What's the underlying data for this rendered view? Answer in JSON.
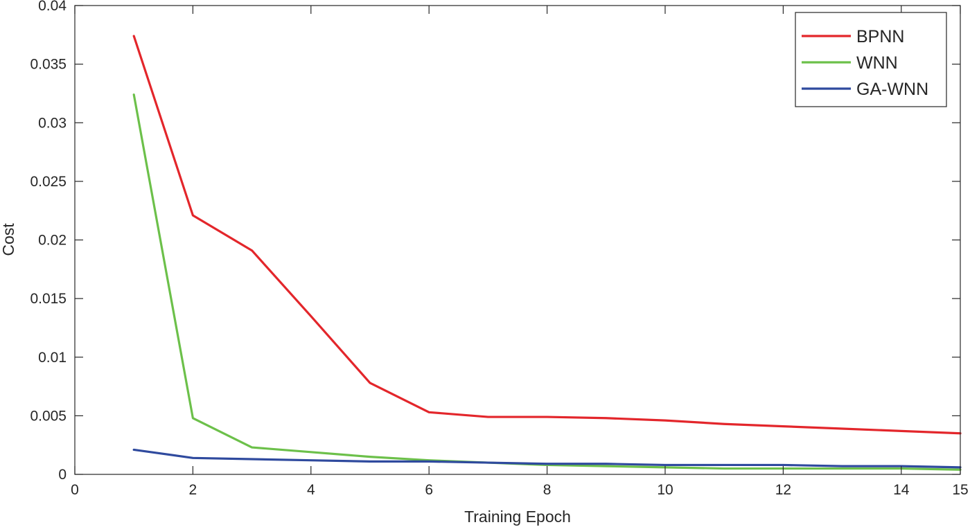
{
  "chart_data": {
    "type": "line",
    "xlabel": "Training Epoch",
    "ylabel": "Cost",
    "xlim": [
      0,
      15
    ],
    "ylim": [
      0,
      0.04
    ],
    "xticks": [
      0,
      2,
      4,
      6,
      8,
      10,
      12,
      14,
      15
    ],
    "xtick_labels": [
      "0",
      "2",
      "4",
      "6",
      "8",
      "10",
      "12",
      "14",
      "15"
    ],
    "yticks": [
      0,
      0.005,
      0.01,
      0.015,
      0.02,
      0.025,
      0.03,
      0.035,
      0.04
    ],
    "ytick_labels": [
      "0",
      "0.005",
      "0.01",
      "0.015",
      "0.02",
      "0.025",
      "0.03",
      "0.035",
      "0.04"
    ],
    "grid": false,
    "legend_position": "top-right",
    "x": [
      1,
      2,
      3,
      4,
      5,
      6,
      7,
      8,
      9,
      10,
      11,
      12,
      13,
      14,
      15
    ],
    "series": [
      {
        "name": "BPNN",
        "color": "#e3262b",
        "values": [
          0.0374,
          0.0221,
          0.0191,
          0.0135,
          0.0078,
          0.0053,
          0.0049,
          0.0049,
          0.0048,
          0.0046,
          0.0043,
          0.0041,
          0.0039,
          0.0037,
          0.0035
        ]
      },
      {
        "name": "WNN",
        "color": "#6cc04a",
        "values": [
          0.0324,
          0.0048,
          0.0023,
          0.0019,
          0.0015,
          0.0012,
          0.001,
          0.0008,
          0.0007,
          0.0006,
          0.0005,
          0.0005,
          0.0005,
          0.0005,
          0.0004
        ]
      },
      {
        "name": "GA-WNN",
        "color": "#2f4a9e",
        "values": [
          0.0021,
          0.0014,
          0.0013,
          0.0012,
          0.0011,
          0.0011,
          0.001,
          0.0009,
          0.0009,
          0.0008,
          0.0008,
          0.0008,
          0.0007,
          0.0007,
          0.0006
        ]
      }
    ]
  }
}
